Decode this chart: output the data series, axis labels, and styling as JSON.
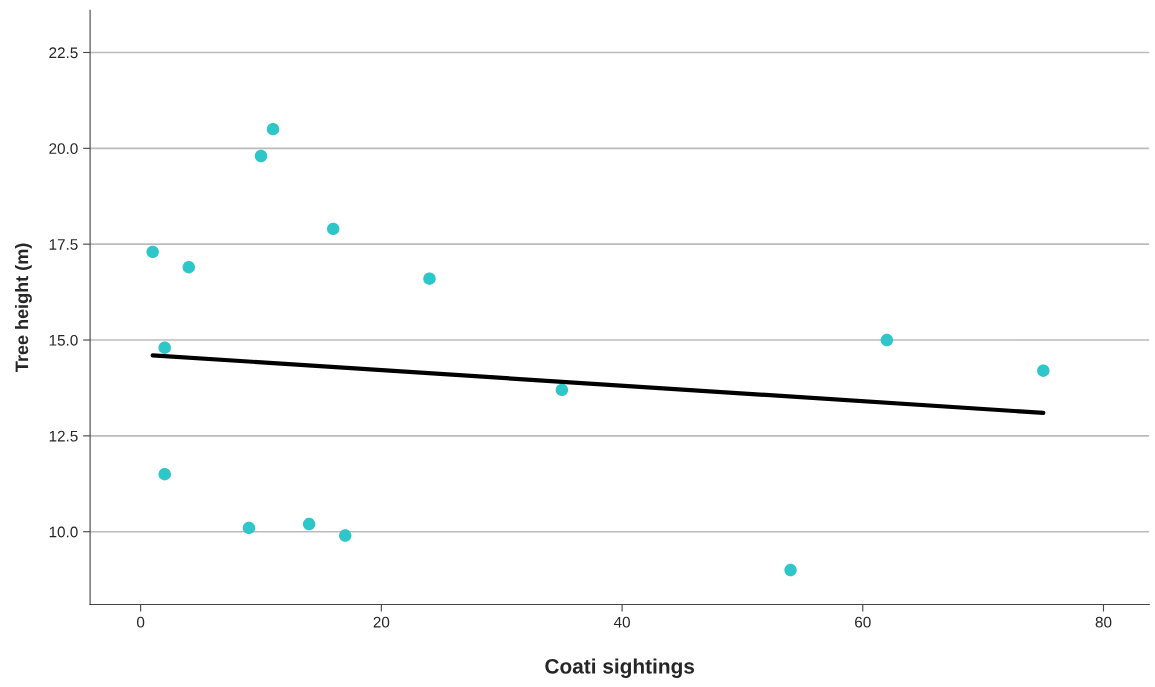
{
  "chart_data": {
    "type": "scatter",
    "xlabel": "Coati sightings",
    "ylabel": "Tree height (m)",
    "series": [
      {
        "marker": "circle",
        "color": "#2ec6c8",
        "x": [
          1,
          2,
          2,
          4,
          9,
          10,
          11,
          14,
          16,
          17,
          24,
          35,
          54,
          62,
          75
        ],
        "values": [
          17.3,
          14.8,
          11.5,
          16.9,
          10.1,
          19.8,
          20.5,
          10.2,
          17.9,
          9.9,
          16.6,
          13.7,
          9.0,
          15.0,
          14.2
        ]
      },
      {
        "type": "line",
        "color": "#000000",
        "x": [
          1,
          75
        ],
        "values": [
          14.6,
          13.1
        ]
      }
    ],
    "xlim": [
      -4.2,
      83.8
    ],
    "xticks": [
      0,
      20,
      40,
      60,
      80
    ],
    "ylim": [
      8.1,
      23.6
    ],
    "yticks": [
      {
        "value": 10,
        "label": "10.0"
      },
      12.5,
      {
        "value": 15,
        "label": "15.0"
      },
      17.5,
      {
        "value": 20,
        "label": "20.0"
      },
      22.5
    ],
    "grid": "y",
    "legend": false
  }
}
